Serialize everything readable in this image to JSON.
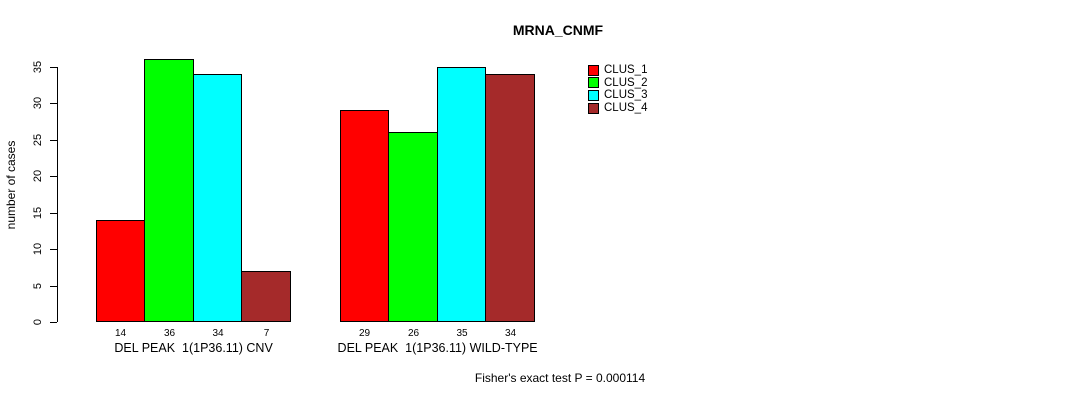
{
  "chart_data": {
    "type": "bar",
    "title": "MRNA_CNMF",
    "xlabel": "",
    "ylabel": "number of cases",
    "ylim": [
      0,
      35
    ],
    "yticks": [
      0,
      5,
      10,
      15,
      20,
      25,
      30,
      35
    ],
    "grid": false,
    "legend_position": "top-right",
    "bar_value_labels": true,
    "categories": [
      "DEL PEAK  1(1P36.11) CNV",
      "DEL PEAK  1(1P36.11) WILD-TYPE"
    ],
    "series": [
      {
        "name": "CLUS_1",
        "color": "#FF0000",
        "values": [
          14,
          29
        ]
      },
      {
        "name": "CLUS_2",
        "color": "#00FF00",
        "values": [
          36,
          26
        ]
      },
      {
        "name": "CLUS_3",
        "color": "#00FFFF",
        "values": [
          34,
          35
        ]
      },
      {
        "name": "CLUS_4",
        "color": "#A52A2A",
        "values": [
          7,
          34
        ]
      }
    ],
    "annotation": "Fisher's exact test P = 0.000114"
  },
  "colors": {
    "background": "#FFFFFF",
    "axis": "#000000",
    "text": "#000000"
  }
}
